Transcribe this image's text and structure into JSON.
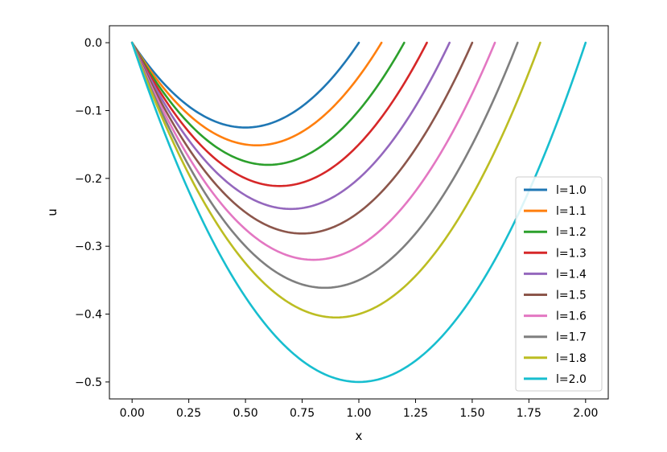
{
  "chart_data": {
    "type": "line",
    "title": "",
    "xlabel": "x",
    "ylabel": "u",
    "xlim": [
      -0.1,
      2.1
    ],
    "ylim": [
      -0.525,
      0.025
    ],
    "grid": false,
    "legend_position": "lower-right",
    "x_ticks": [
      "0.00",
      "0.25",
      "0.50",
      "0.75",
      "1.00",
      "1.25",
      "1.50",
      "1.75",
      "2.00"
    ],
    "y_ticks": [
      "0.0",
      "−0.1",
      "−0.2",
      "−0.3",
      "−0.4",
      "−0.5"
    ],
    "x_tick_values": [
      0,
      0.25,
      0.5,
      0.75,
      1.0,
      1.25,
      1.5,
      1.75,
      2.0
    ],
    "y_tick_values": [
      0,
      -0.1,
      -0.2,
      -0.3,
      -0.4,
      -0.5
    ],
    "curve_formula": "u = x*(x - l)/2 for 0 <= x <= l",
    "series": [
      {
        "name": "l=1.0",
        "l": 1.0,
        "min_u": -0.125,
        "color": "#1f77b4"
      },
      {
        "name": "l=1.1",
        "l": 1.1,
        "min_u": -0.151,
        "color": "#ff7f0e"
      },
      {
        "name": "l=1.2",
        "l": 1.2,
        "min_u": -0.18,
        "color": "#2ca02c"
      },
      {
        "name": "l=1.3",
        "l": 1.3,
        "min_u": -0.211,
        "color": "#d62728"
      },
      {
        "name": "l=1.4",
        "l": 1.4,
        "min_u": -0.245,
        "color": "#9467bd"
      },
      {
        "name": "l=1.5",
        "l": 1.5,
        "min_u": -0.281,
        "color": "#8c564b"
      },
      {
        "name": "l=1.6",
        "l": 1.6,
        "min_u": -0.32,
        "color": "#e377c2"
      },
      {
        "name": "l=1.7",
        "l": 1.7,
        "min_u": -0.361,
        "color": "#7f7f7f"
      },
      {
        "name": "l=1.8",
        "l": 1.8,
        "min_u": -0.405,
        "color": "#bcbd22"
      },
      {
        "name": "l=2.0",
        "l": 2.0,
        "min_u": -0.5,
        "color": "#17becf"
      }
    ]
  }
}
